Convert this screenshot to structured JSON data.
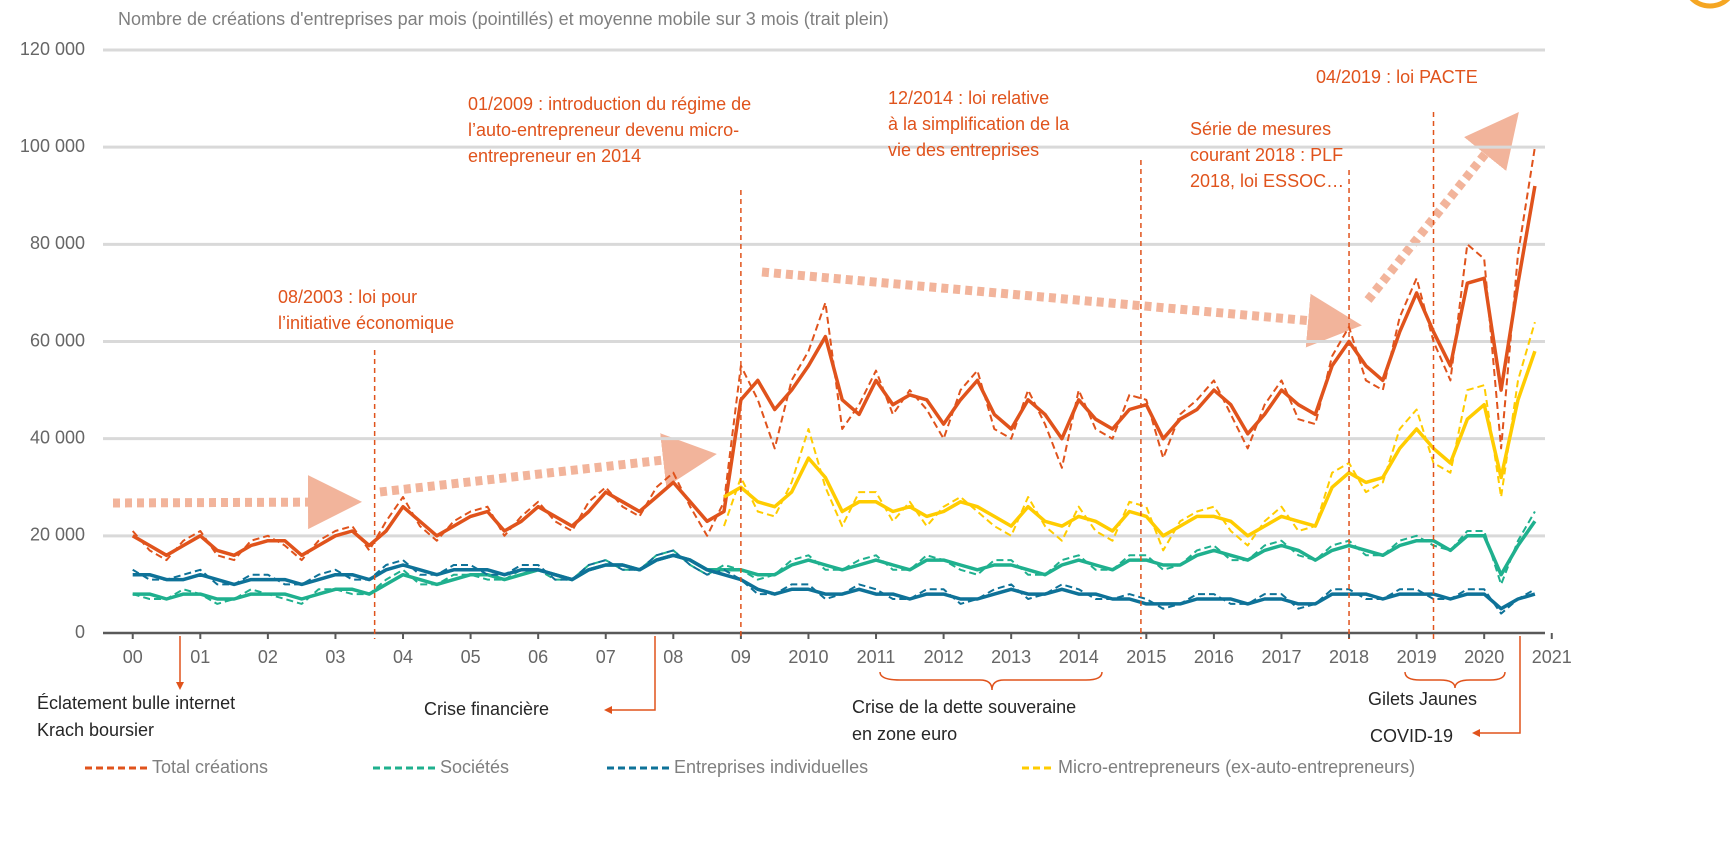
{
  "chart_data": {
    "type": "line",
    "title": "Nombre de créations d'entreprises par mois (pointillés) et moyenne mobile sur 3 mois (trait plein)",
    "x": [
      2000,
      2000.25,
      2000.5,
      2000.75,
      2001,
      2001.25,
      2001.5,
      2001.75,
      2002,
      2002.25,
      2002.5,
      2002.75,
      2003,
      2003.25,
      2003.5,
      2003.75,
      2004,
      2004.25,
      2004.5,
      2004.75,
      2005,
      2005.25,
      2005.5,
      2005.75,
      2006,
      2006.25,
      2006.5,
      2006.75,
      2007,
      2007.25,
      2007.5,
      2007.75,
      2008,
      2008.25,
      2008.5,
      2008.75,
      2009,
      2009.25,
      2009.5,
      2009.75,
      2010,
      2010.25,
      2010.5,
      2010.75,
      2011,
      2011.25,
      2011.5,
      2011.75,
      2012,
      2012.25,
      2012.5,
      2012.75,
      2013,
      2013.25,
      2013.5,
      2013.75,
      2014,
      2014.25,
      2014.5,
      2014.75,
      2015,
      2015.25,
      2015.5,
      2015.75,
      2016,
      2016.25,
      2016.5,
      2016.75,
      2017,
      2017.25,
      2017.5,
      2017.75,
      2018,
      2018.25,
      2018.5,
      2018.75,
      2019,
      2019.25,
      2019.5,
      2019.75,
      2020,
      2020.25,
      2020.5,
      2020.75
    ],
    "series": [
      {
        "name": "Total créations",
        "color": "#e0531c",
        "values": [
          21000,
          17000,
          15000,
          19000,
          21000,
          16000,
          15000,
          19000,
          20000,
          18000,
          15000,
          19000,
          21000,
          22000,
          17000,
          23000,
          28000,
          22000,
          19000,
          23000,
          25000,
          26000,
          20000,
          24000,
          27000,
          23000,
          21000,
          27000,
          30000,
          26000,
          24000,
          30000,
          33000,
          26000,
          20000,
          27000,
          55000,
          48000,
          38000,
          52000,
          58000,
          68000,
          42000,
          47000,
          54000,
          45000,
          50000,
          46000,
          40000,
          50000,
          54000,
          42000,
          40000,
          50000,
          43000,
          34000,
          50000,
          42000,
          40000,
          49000,
          48000,
          36000,
          45000,
          48000,
          52000,
          45000,
          38000,
          47000,
          52000,
          44000,
          43000,
          57000,
          63000,
          52000,
          50000,
          65000,
          73000,
          60000,
          52000,
          80000,
          77000,
          38000,
          78000,
          100000
        ],
        "moving_average": [
          20000,
          18000,
          16000,
          18000,
          20000,
          17000,
          16000,
          18000,
          19000,
          19000,
          16000,
          18000,
          20000,
          21000,
          18000,
          21000,
          26000,
          23000,
          20000,
          22000,
          24000,
          25000,
          21000,
          23000,
          26000,
          24000,
          22000,
          25000,
          29000,
          27000,
          25000,
          28000,
          31000,
          27000,
          23000,
          25000,
          48000,
          52000,
          46000,
          50000,
          55000,
          61000,
          48000,
          45000,
          52000,
          47000,
          49000,
          48000,
          43000,
          48000,
          52000,
          45000,
          42000,
          48000,
          45000,
          40000,
          48000,
          44000,
          42000,
          46000,
          47000,
          40000,
          44000,
          46000,
          50000,
          47000,
          41000,
          45000,
          50000,
          47000,
          45000,
          55000,
          60000,
          55000,
          52000,
          62000,
          70000,
          62000,
          55000,
          72000,
          73000,
          50000,
          72000,
          92000
        ]
      },
      {
        "name": "Sociétés",
        "color": "#1fb08e",
        "values": [
          8000,
          7000,
          7000,
          9000,
          8000,
          6000,
          7000,
          9000,
          8000,
          7000,
          6000,
          9000,
          9000,
          8000,
          8000,
          11000,
          13000,
          10000,
          10000,
          12000,
          12000,
          11000,
          11000,
          13000,
          13000,
          11000,
          11000,
          14000,
          15000,
          13000,
          13000,
          16000,
          17000,
          14000,
          12000,
          14000,
          13000,
          11000,
          12000,
          15000,
          16000,
          13000,
          13000,
          15000,
          16000,
          13000,
          13000,
          16000,
          15000,
          13000,
          12000,
          15000,
          15000,
          12000,
          12000,
          15000,
          16000,
          13000,
          13000,
          16000,
          16000,
          13000,
          14000,
          17000,
          18000,
          15000,
          15000,
          18000,
          19000,
          16000,
          15000,
          18000,
          19000,
          16000,
          16000,
          19000,
          20000,
          18000,
          17000,
          21000,
          21000,
          10000,
          19000,
          25000
        ],
        "moving_average": [
          8000,
          8000,
          7000,
          8000,
          8000,
          7000,
          7000,
          8000,
          8000,
          8000,
          7000,
          8000,
          9000,
          9000,
          8000,
          10000,
          12000,
          11000,
          10000,
          11000,
          12000,
          12000,
          11000,
          12000,
          13000,
          12000,
          11000,
          13000,
          14000,
          14000,
          13000,
          15000,
          16000,
          15000,
          13000,
          13000,
          13000,
          12000,
          12000,
          14000,
          15000,
          14000,
          13000,
          14000,
          15000,
          14000,
          13000,
          15000,
          15000,
          14000,
          13000,
          14000,
          14000,
          13000,
          12000,
          14000,
          15000,
          14000,
          13000,
          15000,
          15000,
          14000,
          14000,
          16000,
          17000,
          16000,
          15000,
          17000,
          18000,
          17000,
          15000,
          17000,
          18000,
          17000,
          16000,
          18000,
          19000,
          19000,
          17000,
          20000,
          20000,
          12000,
          18000,
          23000
        ]
      },
      {
        "name": "Entreprises individuelles",
        "color": "#0e7298",
        "values": [
          13000,
          11000,
          11000,
          12000,
          13000,
          10000,
          10000,
          12000,
          12000,
          10000,
          10000,
          12000,
          13000,
          11000,
          11000,
          14000,
          15000,
          12000,
          12000,
          14000,
          14000,
          12000,
          12000,
          14000,
          14000,
          11000,
          11000,
          14000,
          15000,
          13000,
          13000,
          16000,
          17000,
          14000,
          12000,
          13000,
          11000,
          8000,
          8000,
          10000,
          10000,
          7000,
          8000,
          10000,
          9000,
          7000,
          7000,
          9000,
          9000,
          6000,
          7000,
          9000,
          10000,
          7000,
          8000,
          10000,
          9000,
          7000,
          7000,
          8000,
          7000,
          5000,
          6000,
          8000,
          8000,
          6000,
          6000,
          8000,
          8000,
          5000,
          6000,
          9000,
          9000,
          7000,
          7000,
          9000,
          9000,
          7000,
          7000,
          9000,
          9000,
          4000,
          7000,
          9000
        ],
        "moving_average": [
          12000,
          12000,
          11000,
          11000,
          12000,
          11000,
          10000,
          11000,
          11000,
          11000,
          10000,
          11000,
          12000,
          12000,
          11000,
          13000,
          14000,
          13000,
          12000,
          13000,
          13000,
          13000,
          12000,
          13000,
          13000,
          12000,
          11000,
          13000,
          14000,
          14000,
          13000,
          15000,
          16000,
          15000,
          13000,
          12000,
          11000,
          9000,
          8000,
          9000,
          9000,
          8000,
          8000,
          9000,
          8000,
          8000,
          7000,
          8000,
          8000,
          7000,
          7000,
          8000,
          9000,
          8000,
          8000,
          9000,
          8000,
          8000,
          7000,
          7000,
          6000,
          6000,
          6000,
          7000,
          7000,
          7000,
          6000,
          7000,
          7000,
          6000,
          6000,
          8000,
          8000,
          8000,
          7000,
          8000,
          8000,
          8000,
          7000,
          8000,
          8000,
          5000,
          7000,
          8000
        ]
      },
      {
        "name": "Micro-entrepreneurs (ex-auto-entrepreneurs)",
        "color": "#ffcc00",
        "values": [
          null,
          null,
          null,
          null,
          null,
          null,
          null,
          null,
          null,
          null,
          null,
          null,
          null,
          null,
          null,
          null,
          null,
          null,
          null,
          null,
          null,
          null,
          null,
          null,
          null,
          null,
          null,
          null,
          null,
          null,
          null,
          null,
          null,
          null,
          null,
          22000,
          32000,
          25000,
          24000,
          31000,
          42000,
          30000,
          22000,
          29000,
          29000,
          23000,
          27000,
          22000,
          26000,
          28000,
          25000,
          22000,
          20000,
          28000,
          22000,
          19000,
          26000,
          21000,
          19000,
          27000,
          26000,
          17000,
          23000,
          25000,
          26000,
          21000,
          18000,
          23000,
          26000,
          21000,
          22000,
          33000,
          35000,
          29000,
          31000,
          42000,
          46000,
          35000,
          33000,
          50000,
          51000,
          28000,
          52000,
          64000
        ],
        "moving_average": [
          null,
          null,
          null,
          null,
          null,
          null,
          null,
          null,
          null,
          null,
          null,
          null,
          null,
          null,
          null,
          null,
          null,
          null,
          null,
          null,
          null,
          null,
          null,
          null,
          null,
          null,
          null,
          null,
          null,
          null,
          null,
          null,
          null,
          null,
          null,
          28000,
          30000,
          27000,
          26000,
          29000,
          36000,
          32000,
          25000,
          27000,
          27000,
          25000,
          26000,
          24000,
          25000,
          27000,
          26000,
          24000,
          22000,
          26000,
          23000,
          22000,
          24000,
          23000,
          21000,
          25000,
          24000,
          20000,
          22000,
          24000,
          24000,
          23000,
          20000,
          22000,
          24000,
          23000,
          22000,
          30000,
          33000,
          31000,
          32000,
          38000,
          42000,
          38000,
          35000,
          44000,
          47000,
          32000,
          48000,
          58000
        ]
      }
    ],
    "xlim": [
      1999.56,
      2020.9
    ],
    "xticks": [
      {
        "value": 2000,
        "label": "00"
      },
      {
        "value": 2001,
        "label": "01"
      },
      {
        "value": 2002,
        "label": "02"
      },
      {
        "value": 2003,
        "label": "03"
      },
      {
        "value": 2004,
        "label": "04"
      },
      {
        "value": 2005,
        "label": "05"
      },
      {
        "value": 2006,
        "label": "06"
      },
      {
        "value": 2007,
        "label": "07"
      },
      {
        "value": 2008,
        "label": "08"
      },
      {
        "value": 2009,
        "label": "09"
      },
      2010,
      2011,
      2012,
      2013,
      2014,
      2015,
      2016,
      2017,
      2018,
      2019,
      2020,
      2021
    ],
    "ylim": [
      0,
      120000
    ],
    "yticks": [
      0,
      {
        "value": 20000,
        "label": "20 000"
      },
      {
        "value": 40000,
        "label": "40 000"
      },
      {
        "value": 60000,
        "label": "60 000"
      },
      {
        "value": 80000,
        "label": "80 000"
      },
      {
        "value": 100000,
        "label": "100 000"
      },
      {
        "value": 120000,
        "label": "120 000"
      }
    ],
    "grid": true,
    "events": [
      {
        "x": 2003.58,
        "lines": [
          "08/2003 : loi pour",
          "l’initiative  économique"
        ]
      },
      {
        "x": 2009.0,
        "lines": [
          "01/2009 : introduction du régime de",
          "l’auto-entrepreneur devenu micro-",
          "entrepreneur en 2014"
        ]
      },
      {
        "x": 2014.92,
        "lines": [
          "12/2014 : loi relative",
          "à la simplification de la",
          "vie des entreprises"
        ]
      },
      {
        "x": 2018.0,
        "lines": [
          "Série de mesures",
          "courant 2018 : PLF",
          "2018, loi ESSOC…"
        ]
      },
      {
        "x": 2019.25,
        "lines": [
          "04/2019 : loi PACTE"
        ]
      }
    ],
    "crises": [
      {
        "lines": [
          "Éclatement bulle internet",
          "Krach boursier"
        ]
      },
      {
        "lines": [
          "Crise financière"
        ]
      },
      {
        "lines": [
          "Crise de la dette souveraine",
          "en zone euro"
        ]
      },
      {
        "lines": [
          "Gilets Jaunes"
        ]
      },
      {
        "lines": [
          "COVID-19"
        ]
      }
    ]
  }
}
